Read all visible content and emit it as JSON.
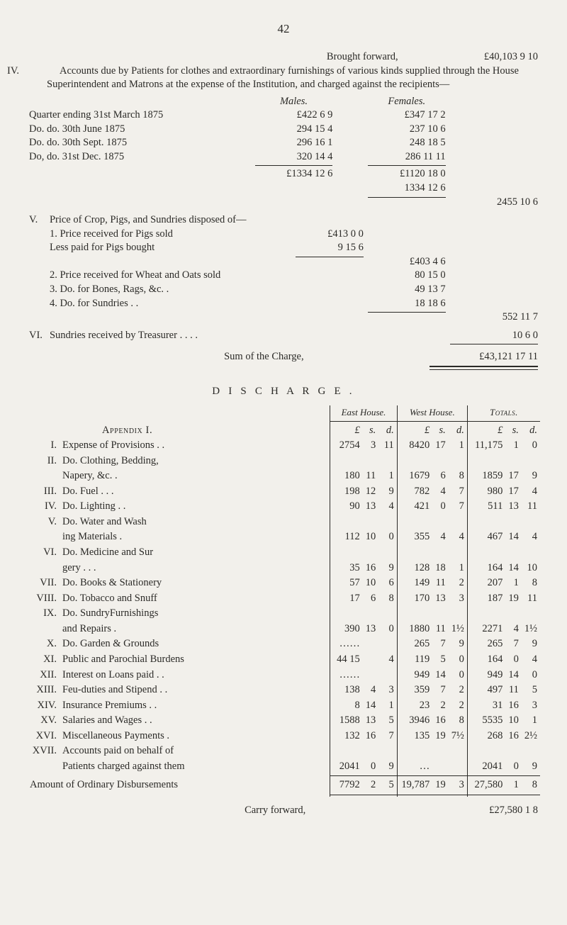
{
  "page_number": "42",
  "brought_forward": {
    "label": "Brought forward,",
    "amount": "£40,103  9 10"
  },
  "iv": {
    "roman": "IV.",
    "text": "Accounts due by Patients for clothes and extraordinary furnish­ings of various kinds supplied through the House Superinten­dent and Matrons at the expense of the Institution, and charged against the recipients—",
    "col_males": "Males.",
    "col_females": "Females.",
    "rows": [
      {
        "label": "Quarter ending 31st March 1875",
        "m": "£422  6  9",
        "f": "£347 17  2"
      },
      {
        "label": "Do.      do.   30th June 1875",
        "m": "294 15  4",
        "f": "237 10  6"
      },
      {
        "label": "Do.      do.   30th Sept. 1875",
        "m": "296 16  1",
        "f": "248 18  5"
      },
      {
        "label": "Do,      do.   31st Dec. 1875",
        "m": "320 14  4",
        "f": "286 11 11"
      }
    ],
    "total_m": "£1334 12  6",
    "total_f1": "£1120 18  0",
    "total_f2": "1334 12  6",
    "grand": "2455 10  6"
  },
  "v": {
    "roman": "V.",
    "head": "Price of Crop, Pigs, and Sundries disposed of—",
    "line1_label": "1. Price received for Pigs sold",
    "line1_amt": "£413  0  0",
    "line2_label": "Less paid for Pigs bought",
    "line2_amt": "9 15  6",
    "sub1": "£403  4  6",
    "line3_label": "2. Price received for Wheat and Oats sold",
    "line3_amt": "80 15  0",
    "line4_label": "3.        Do.        for Bones, Rags, &c.     .",
    "line4_amt": "49 13  7",
    "line5_label": "4.        Do.        for Sundries        .        .",
    "line5_amt": "18 18  6",
    "subtotal": "552 11  7"
  },
  "vi": {
    "roman": "VI.",
    "label": "Sundries received by Treasurer       .        .        .        .",
    "amt": "10  6  0"
  },
  "sum_line": {
    "label": "Sum of the Charge,",
    "amt": "£43,121 17 11"
  },
  "discharge_title": "D I S C H A R G E .",
  "cols": {
    "east": "East House.",
    "west": "West House.",
    "totals": "Totals."
  },
  "lsd_head": {
    "l": "£",
    "s": "s.",
    "d": "d."
  },
  "discharge": [
    {
      "rn": "",
      "label": "Appendix I.",
      "smallcaps": true
    },
    {
      "rn": "I.",
      "label": "Expense of Provisions   .     .",
      "e": [
        "2754",
        "3",
        "11"
      ],
      "w": [
        "8420",
        "17",
        "1"
      ],
      "t": [
        "11,175",
        "1",
        "0"
      ]
    },
    {
      "rn": "II.",
      "label": "Do.        Clothing, Bedding,"
    },
    {
      "rn": "",
      "label": "                Napery, &c.     .",
      "e": [
        "180",
        "11",
        "1"
      ],
      "w": [
        "1679",
        "6",
        "8"
      ],
      "t": [
        "1859",
        "17",
        "9"
      ]
    },
    {
      "rn": "III.",
      "label": "Do.        Fuel   .    .    .",
      "e": [
        "198",
        "12",
        "9"
      ],
      "w": [
        "782",
        "4",
        "7"
      ],
      "t": [
        "980",
        "17",
        "4"
      ]
    },
    {
      "rn": "IV.",
      "label": "Do.        Lighting     .     .",
      "e": [
        "90",
        "13",
        "4"
      ],
      "w": [
        "421",
        "0",
        "7"
      ],
      "t": [
        "511",
        "13",
        "11"
      ]
    },
    {
      "rn": "V.",
      "label": "Do.        Water and Wash­"
    },
    {
      "rn": "",
      "label": "                ing Materials   .",
      "e": [
        "112",
        "10",
        "0"
      ],
      "w": [
        "355",
        "4",
        "4"
      ],
      "t": [
        "467",
        "14",
        "4"
      ]
    },
    {
      "rn": "VI.",
      "label": "Do.        Medicine and Sur­"
    },
    {
      "rn": "",
      "label": "                gery  .    .    .",
      "e": [
        "35",
        "16",
        "9"
      ],
      "w": [
        "128",
        "18",
        "1"
      ],
      "t": [
        "164",
        "14",
        "10"
      ]
    },
    {
      "rn": "VII.",
      "label": "Do.        Books & Stationery",
      "e": [
        "57",
        "10",
        "6"
      ],
      "w": [
        "149",
        "11",
        "2"
      ],
      "t": [
        "207",
        "1",
        "8"
      ]
    },
    {
      "rn": "VIII.",
      "label": "Do.        Tobacco and Snuff",
      "e": [
        "17",
        "6",
        "8"
      ],
      "w": [
        "170",
        "13",
        "3"
      ],
      "t": [
        "187",
        "19",
        "11"
      ]
    },
    {
      "rn": "IX.",
      "label": "Do.        SundryFurnishings"
    },
    {
      "rn": "",
      "label": "                and Repairs     .",
      "e": [
        "390",
        "13",
        "0"
      ],
      "w": [
        "1880",
        "11",
        "1½"
      ],
      "t": [
        "2271",
        "4",
        "1½"
      ]
    },
    {
      "rn": "X.",
      "label": "Do.        Garden & Grounds",
      "e": [
        "……",
        "",
        ""
      ],
      "w": [
        "265",
        "7",
        "9"
      ],
      "t": [
        "265",
        "7",
        "9"
      ]
    },
    {
      "rn": "XI.",
      "label": "Public and Parochial Burdens",
      "e": [
        "44 15",
        "",
        "4"
      ],
      "eraw": true,
      "w": [
        "119",
        "5",
        "0"
      ],
      "t": [
        "164",
        "0",
        "4"
      ]
    },
    {
      "rn": "XII.",
      "label": "Interest on Loans paid  .     .",
      "e": [
        "……",
        "",
        ""
      ],
      "w": [
        "949",
        "14",
        "0"
      ],
      "t": [
        "949",
        "14",
        "0"
      ]
    },
    {
      "rn": "XIII.",
      "label": "Feu-duties and Stipend .     .",
      "e": [
        "138",
        "4",
        "3"
      ],
      "w": [
        "359",
        "7",
        "2"
      ],
      "t": [
        "497",
        "11",
        "5"
      ]
    },
    {
      "rn": "XIV.",
      "label": "Insurance Premiums    .     .",
      "e": [
        "8",
        "14",
        "1"
      ],
      "w": [
        "23",
        "2",
        "2"
      ],
      "t": [
        "31",
        "16",
        "3"
      ]
    },
    {
      "rn": "XV.",
      "label": "Salaries and Wages      .     .",
      "e": [
        "1588",
        "13",
        "5"
      ],
      "w": [
        "3946",
        "16",
        "8"
      ],
      "t": [
        "5535",
        "10",
        "1"
      ]
    },
    {
      "rn": "XVI.",
      "label": "Miscellaneous Payments      .",
      "e": [
        "132",
        "16",
        "7"
      ],
      "w": [
        "135",
        "19",
        "7½"
      ],
      "t": [
        "268",
        "16",
        "2½"
      ]
    },
    {
      "rn": "XVII.",
      "label": "Accounts paid on behalf of"
    },
    {
      "rn": "",
      "label": "Patients charged against them",
      "e": [
        "2041",
        "0",
        "9"
      ],
      "w": [
        "…",
        "",
        ""
      ],
      "t": [
        "2041",
        "0",
        "9"
      ]
    }
  ],
  "ordinary": {
    "label": "Amount of Ordinary Disbursements",
    "e": [
      "7792",
      "2",
      "5"
    ],
    "w": [
      "19,787",
      "19",
      "3"
    ],
    "t": [
      "27,580",
      "1",
      "8"
    ]
  },
  "carry": {
    "label": "Carry forward,",
    "amt": "£27,580  1  8"
  }
}
